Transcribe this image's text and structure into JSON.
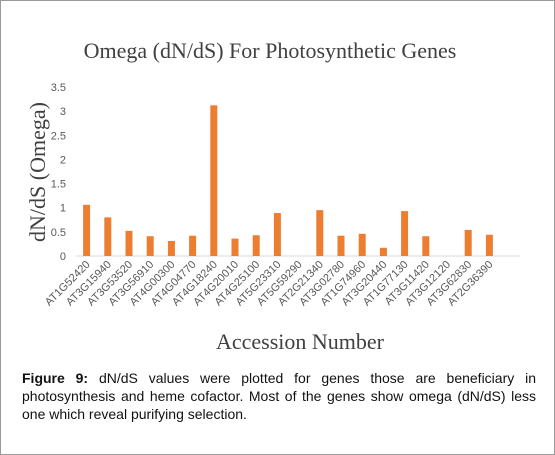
{
  "chart_data": {
    "type": "bar",
    "title": "Omega (dN/dS) For Photosynthetic Genes",
    "x_label": "Accession Number",
    "y_label": "dN/dS  (Omega)",
    "categories": [
      "AT1G52420",
      "AT3G15940",
      "AT3G53520",
      "AT3G56910",
      "AT4G00300",
      "AT4G04770",
      "AT4G18240",
      "AT4G20010",
      "AT4G25100",
      "AT5G23310",
      "AT5G59290",
      "AT2G21340",
      "AT3G02780",
      "AT1G74960",
      "AT3G20440",
      "AT1G77130",
      "AT3G11420",
      "AT3G12120",
      "AT3G62830",
      "AT2G36390"
    ],
    "values": [
      1.06,
      0.8,
      0.52,
      0.41,
      0.31,
      0.42,
      3.12,
      0.36,
      0.43,
      0.89,
      0,
      0.95,
      0.42,
      0.46,
      0.17,
      0.93,
      0.41,
      0,
      0.54,
      0.44
    ],
    "color": "#ed7d31",
    "ylim": [
      0,
      3.5
    ],
    "yticks": [
      0,
      0.5,
      1,
      1.5,
      2,
      2.5,
      3,
      3.5
    ],
    "grid": false
  },
  "caption": {
    "label": "Figure 9:",
    "text": "dN/dS values were plotted for genes those are beneficiary in photosynthesis and heme cofactor. Most of the genes show omega (dN/dS) less one which reveal purifying selection."
  }
}
